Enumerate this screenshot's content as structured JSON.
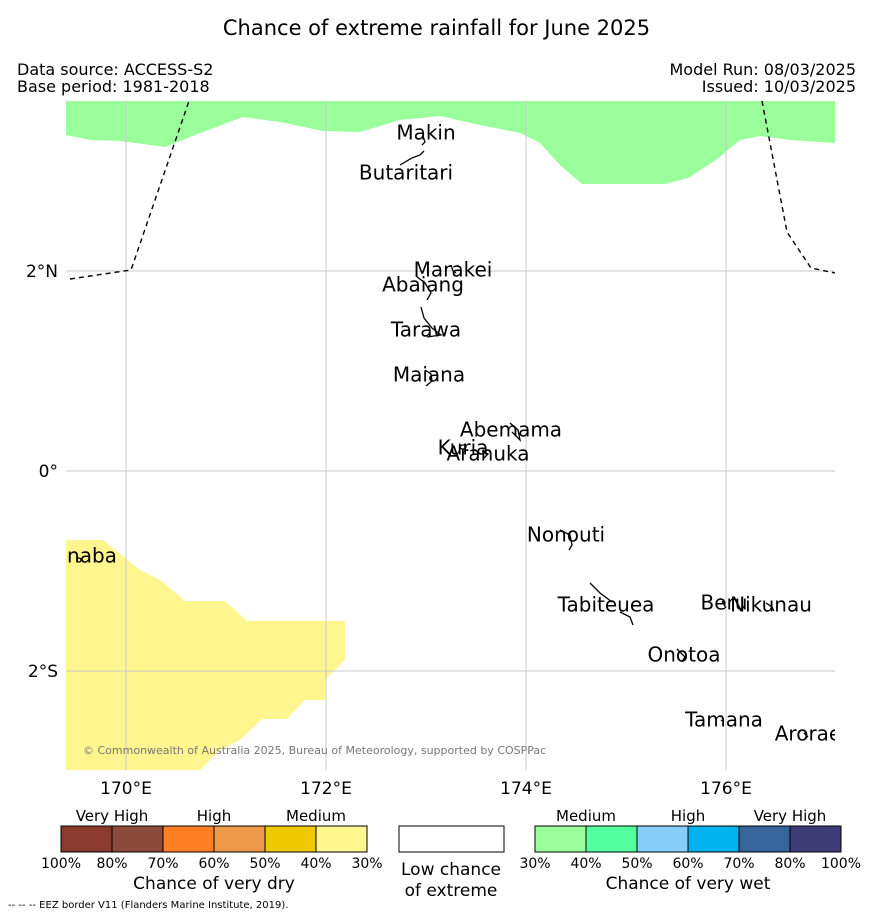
{
  "title": "Chance of extreme rainfall for June 2025",
  "info": {
    "data_source": "Data source: ACCESS-S2",
    "base_period": "Base period: 1981-2018",
    "model_run": "Model Run: 08/03/2025",
    "issued": "Issued: 10/03/2025"
  },
  "map": {
    "lon_range": [
      169.4,
      177.2
    ],
    "lat_range": [
      -3.0,
      3.7
    ],
    "lon_ticks": [
      {
        "lon": 170,
        "label": "170°E"
      },
      {
        "lon": 172,
        "label": "172°E"
      },
      {
        "lon": 174,
        "label": "174°E"
      },
      {
        "lon": 176,
        "label": "176°E"
      }
    ],
    "lat_ticks": [
      {
        "lat": 2,
        "label": "2°N"
      },
      {
        "lat": 0,
        "label": "0°"
      },
      {
        "lat": -2,
        "label": "2°S"
      }
    ],
    "places": [
      {
        "name": "Makin",
        "lon": 173.0,
        "lat": 3.37
      },
      {
        "name": "Butaritari",
        "lon": 172.8,
        "lat": 2.97
      },
      {
        "name": "Marakei",
        "lon": 173.27,
        "lat": 2.0
      },
      {
        "name": "Abaiang",
        "lon": 172.97,
        "lat": 1.85
      },
      {
        "name": "Tarawa",
        "lon": 173.0,
        "lat": 1.4
      },
      {
        "name": "Maiana",
        "lon": 173.03,
        "lat": 0.95
      },
      {
        "name": "Abemama",
        "lon": 173.85,
        "lat": 0.4
      },
      {
        "name": "Kuria",
        "lon": 173.37,
        "lat": 0.22
      },
      {
        "name": "Aranuka",
        "lon": 173.62,
        "lat": 0.16
      },
      {
        "name": "Nonouti",
        "lon": 174.4,
        "lat": -0.65
      },
      {
        "name": "Banaba",
        "lon": 169.53,
        "lat": -0.86
      },
      {
        "name": "Tabiteuea",
        "lon": 174.8,
        "lat": -1.35
      },
      {
        "name": "Beru",
        "lon": 175.98,
        "lat": -1.33
      },
      {
        "name": "Nikunau",
        "lon": 176.45,
        "lat": -1.35
      },
      {
        "name": "Onotoa",
        "lon": 175.58,
        "lat": -1.85
      },
      {
        "name": "Tamana",
        "lon": 175.98,
        "lat": -2.5
      },
      {
        "name": "Arorae",
        "lon": 176.82,
        "lat": -2.64
      }
    ],
    "wet_region_category": "Medium (very wet)",
    "dry_region_category": "Medium (very dry)",
    "copyright": "© Commonwealth of Australia 2025, Bureau of Meteorology, supported by COSPPac"
  },
  "legend": {
    "dry": {
      "groups": [
        "Very High",
        "High",
        "Medium"
      ],
      "colors": [
        "#8b3a2e",
        "#8c4a3a",
        "#ff7f24",
        "#ee9a4a",
        "#eec900",
        "#fff68f"
      ],
      "ticks": [
        "100%",
        "80%",
        "70%",
        "60%",
        "50%",
        "40%",
        "30%"
      ],
      "title": "Chance of very dry"
    },
    "low": {
      "color": "#ffffff",
      "title_line1": "Low chance",
      "title_line2": "of extreme"
    },
    "wet": {
      "groups": [
        "Medium",
        "High",
        "Very High"
      ],
      "colors": [
        "#9aff9a",
        "#54ff9f",
        "#87cefa",
        "#00b2ee",
        "#36649b",
        "#3d3b78"
      ],
      "ticks": [
        "30%",
        "40%",
        "50%",
        "60%",
        "70%",
        "80%",
        "100%"
      ],
      "title": "Chance of very wet"
    }
  },
  "footer": "-- -- -- EEZ border V11 (Flanders Marine Institute, 2019)."
}
